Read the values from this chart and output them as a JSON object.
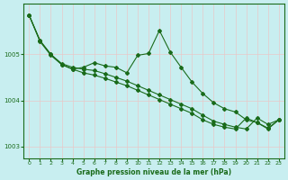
{
  "xlabel": "Graphe pression niveau de la mer (hPa)",
  "background_color": "#c8eef0",
  "grid_color_v": "#e8c8c8",
  "grid_color_h": "#e8c8c8",
  "line_color": "#1a6b1a",
  "xlim": [
    -0.5,
    23.5
  ],
  "ylim": [
    1002.75,
    1006.1
  ],
  "yticks": [
    1003,
    1004,
    1005
  ],
  "xticks": [
    0,
    1,
    2,
    3,
    4,
    5,
    6,
    7,
    8,
    9,
    10,
    11,
    12,
    13,
    14,
    15,
    16,
    17,
    18,
    19,
    20,
    21,
    22,
    23
  ],
  "series1": [
    1005.85,
    1005.3,
    1005.0,
    1004.8,
    1004.72,
    1004.68,
    1004.65,
    1004.58,
    1004.5,
    1004.42,
    1004.32,
    1004.22,
    1004.12,
    1004.02,
    1003.92,
    1003.82,
    1003.68,
    1003.55,
    1003.48,
    1003.42,
    1003.38,
    1003.62,
    1003.48,
    1003.58
  ],
  "series2": [
    1005.85,
    1005.3,
    1005.0,
    1004.78,
    1004.68,
    1004.72,
    1004.82,
    1004.75,
    1004.72,
    1004.6,
    1004.98,
    1005.02,
    1005.52,
    1005.05,
    1004.72,
    1004.4,
    1004.15,
    1003.95,
    1003.82,
    1003.75,
    1003.58,
    1003.52,
    1003.38,
    1003.58
  ],
  "series3": [
    1005.85,
    1005.28,
    1004.98,
    1004.78,
    1004.68,
    1004.6,
    1004.55,
    1004.48,
    1004.4,
    1004.32,
    1004.22,
    1004.12,
    1004.02,
    1003.92,
    1003.82,
    1003.72,
    1003.58,
    1003.48,
    1003.42,
    1003.38,
    1003.62,
    1003.52,
    1003.4,
    1003.58
  ]
}
